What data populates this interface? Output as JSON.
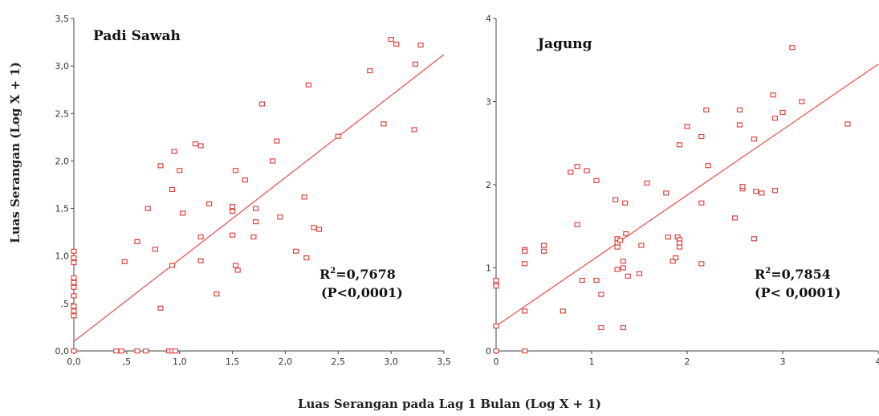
{
  "figure": {
    "ylabel": "Luas Serangan (Log X + 1)",
    "xlabel": "Luas Serangan pada Lag 1 Bulan (Log X + 1)"
  },
  "colors": {
    "marker": "#e0453f",
    "line": "#e8635c",
    "axis": "#444444"
  },
  "chart_data": [
    {
      "type": "scatter",
      "title": "Padi Sawah",
      "stat_r2": "R²=0,7678",
      "stat_p": "(P<0,0001)",
      "xlim": [
        0,
        3.5
      ],
      "ylim": [
        0,
        3.5
      ],
      "xticks": [
        "0,0",
        ",5",
        "1,0",
        "1,5",
        "2,0",
        "2,5",
        "3,0",
        "3,5"
      ],
      "yticks": [
        "0,0",
        ",5",
        "1,0",
        "1,5",
        "2,0",
        "2,5",
        "3,0",
        "3,5"
      ],
      "trend": [
        [
          0,
          0.1
        ],
        [
          3.5,
          3.12
        ]
      ],
      "points": [
        [
          0,
          1.05
        ],
        [
          0,
          0.98
        ],
        [
          0,
          0.93
        ],
        [
          0,
          0.77
        ],
        [
          0,
          0.72
        ],
        [
          0,
          0.67
        ],
        [
          0,
          0.58
        ],
        [
          0,
          0.47
        ],
        [
          0,
          0.42
        ],
        [
          0,
          0.37
        ],
        [
          0,
          0
        ],
        [
          0.4,
          0
        ],
        [
          0.45,
          0
        ],
        [
          0.6,
          0
        ],
        [
          0.68,
          0
        ],
        [
          0.9,
          0
        ],
        [
          0.93,
          0
        ],
        [
          0.96,
          0
        ],
        [
          0.48,
          0.94
        ],
        [
          0.6,
          1.15
        ],
        [
          0.7,
          1.5
        ],
        [
          0.77,
          1.07
        ],
        [
          0.82,
          1.95
        ],
        [
          0.82,
          0.45
        ],
        [
          0.93,
          0.9
        ],
        [
          0.93,
          1.7
        ],
        [
          0.95,
          2.1
        ],
        [
          1.0,
          1.9
        ],
        [
          1.03,
          1.45
        ],
        [
          1.15,
          2.18
        ],
        [
          1.2,
          2.16
        ],
        [
          1.2,
          1.2
        ],
        [
          1.2,
          0.95
        ],
        [
          1.28,
          1.55
        ],
        [
          1.35,
          0.6
        ],
        [
          1.5,
          1.52
        ],
        [
          1.5,
          1.47
        ],
        [
          1.5,
          1.22
        ],
        [
          1.53,
          1.9
        ],
        [
          1.53,
          0.9
        ],
        [
          1.55,
          0.85
        ],
        [
          1.62,
          1.8
        ],
        [
          1.7,
          1.2
        ],
        [
          1.72,
          1.36
        ],
        [
          1.72,
          1.5
        ],
        [
          1.78,
          2.6
        ],
        [
          1.88,
          2.0
        ],
        [
          1.92,
          2.21
        ],
        [
          1.95,
          1.41
        ],
        [
          2.1,
          1.05
        ],
        [
          2.18,
          1.62
        ],
        [
          2.2,
          0.98
        ],
        [
          2.22,
          2.8
        ],
        [
          2.27,
          1.3
        ],
        [
          2.32,
          1.28
        ],
        [
          2.5,
          2.26
        ],
        [
          2.8,
          2.95
        ],
        [
          2.93,
          2.39
        ],
        [
          3.0,
          3.28
        ],
        [
          3.05,
          3.23
        ],
        [
          3.22,
          2.33
        ],
        [
          3.23,
          3.02
        ],
        [
          3.28,
          3.22
        ]
      ]
    },
    {
      "type": "scatter",
      "title": "Jagung",
      "stat_r2": "R²=0,7854",
      "stat_p": "(P< 0,0001)",
      "xlim": [
        0,
        4
      ],
      "ylim": [
        0,
        4
      ],
      "xticks": [
        "0",
        "1",
        "2",
        "3",
        "4"
      ],
      "yticks": [
        "0",
        "1",
        "2",
        "3",
        "4"
      ],
      "trend": [
        [
          0,
          0.3
        ],
        [
          4,
          3.45
        ]
      ],
      "points": [
        [
          0,
          0.85
        ],
        [
          0,
          0.8
        ],
        [
          0,
          0.78
        ],
        [
          0,
          0.3
        ],
        [
          0,
          0
        ],
        [
          0.3,
          1.22
        ],
        [
          0.3,
          1.2
        ],
        [
          0.3,
          1.05
        ],
        [
          0.3,
          0.48
        ],
        [
          0.3,
          0
        ],
        [
          0.5,
          1.27
        ],
        [
          0.5,
          1.2
        ],
        [
          0.7,
          0.48
        ],
        [
          0.78,
          2.15
        ],
        [
          0.85,
          2.22
        ],
        [
          0.85,
          1.52
        ],
        [
          0.9,
          0.85
        ],
        [
          0.95,
          2.17
        ],
        [
          1.05,
          0.85
        ],
        [
          1.05,
          2.05
        ],
        [
          1.1,
          0.68
        ],
        [
          1.1,
          0.28
        ],
        [
          1.25,
          1.82
        ],
        [
          1.27,
          1.35
        ],
        [
          1.27,
          1.3
        ],
        [
          1.27,
          1.25
        ],
        [
          1.27,
          0.98
        ],
        [
          1.3,
          1.33
        ],
        [
          1.33,
          1.08
        ],
        [
          1.33,
          1.0
        ],
        [
          1.35,
          1.78
        ],
        [
          1.36,
          1.41
        ],
        [
          1.33,
          0.28
        ],
        [
          1.38,
          0.9
        ],
        [
          1.5,
          0.93
        ],
        [
          1.52,
          1.27
        ],
        [
          1.58,
          2.02
        ],
        [
          1.78,
          1.9
        ],
        [
          1.8,
          1.37
        ],
        [
          1.85,
          1.08
        ],
        [
          1.88,
          1.12
        ],
        [
          1.9,
          1.37
        ],
        [
          1.92,
          1.34
        ],
        [
          1.92,
          1.3
        ],
        [
          1.92,
          1.25
        ],
        [
          1.92,
          2.48
        ],
        [
          2.0,
          2.7
        ],
        [
          2.15,
          2.58
        ],
        [
          2.15,
          1.05
        ],
        [
          2.15,
          1.78
        ],
        [
          2.2,
          2.9
        ],
        [
          2.22,
          2.23
        ],
        [
          2.5,
          1.6
        ],
        [
          2.55,
          2.9
        ],
        [
          2.55,
          2.72
        ],
        [
          2.58,
          1.95
        ],
        [
          2.58,
          1.98
        ],
        [
          2.7,
          2.55
        ],
        [
          2.7,
          1.35
        ],
        [
          2.72,
          1.92
        ],
        [
          2.78,
          1.9
        ],
        [
          2.9,
          3.08
        ],
        [
          2.92,
          2.8
        ],
        [
          2.92,
          1.93
        ],
        [
          3.0,
          2.87
        ],
        [
          3.1,
          3.65
        ],
        [
          3.2,
          3.0
        ],
        [
          3.68,
          2.73
        ]
      ]
    }
  ]
}
